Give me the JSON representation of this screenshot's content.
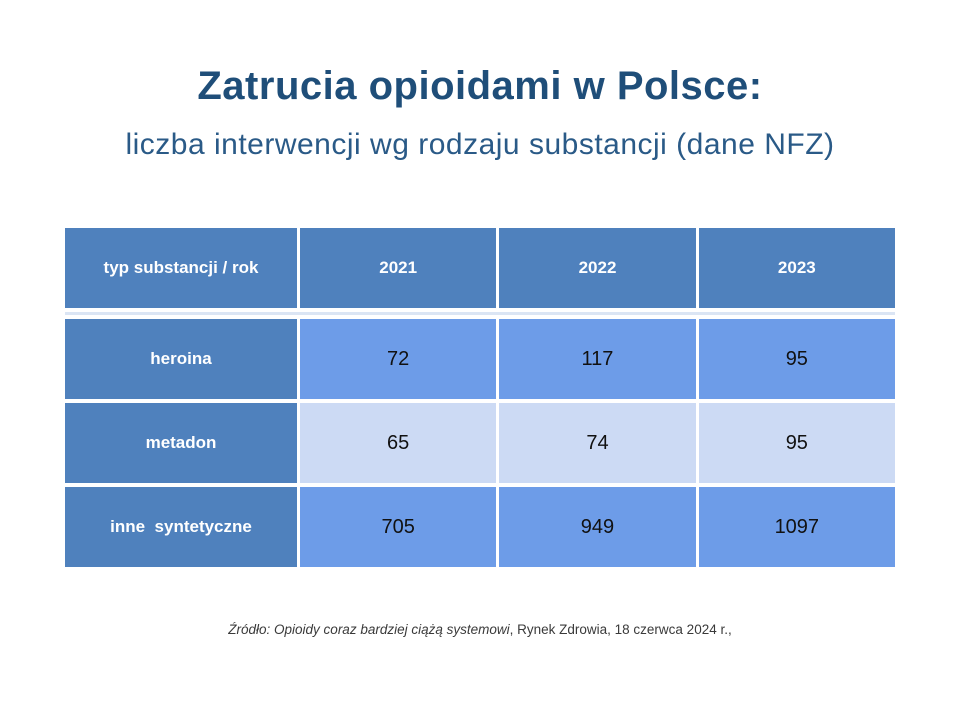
{
  "slide": {
    "title": "Zatrucia opioidami w Polsce:",
    "subtitle": "liczba interwencji wg rodzaju substancji (dane NFZ)",
    "source_italic": "Źródło: Opioidy coraz bardziej ciążą systemowi",
    "source_regular": ", Rynek Zdrowia, 18 czerwca 2024 r.,"
  },
  "colors": {
    "title_text": "#1f4e79",
    "subtitle_text": "#2a5a87",
    "header_blue": "#4f81bd",
    "data_cell_blue": "#6d9ce8",
    "light_row_blue": "#ccdaf4",
    "divider": "#dbe5f4"
  },
  "chart_data": {
    "type": "table",
    "title": "Zatrucia opioidami w Polsce: liczba interwencji wg rodzaju substancji (dane NFZ)",
    "columns": [
      "typ substancji / rok",
      "2021",
      "2022",
      "2023"
    ],
    "rows": [
      {
        "label": "heroina",
        "values": [
          "72",
          "117",
          "95"
        ]
      },
      {
        "label": "metadon",
        "values": [
          "65",
          "74",
          "95"
        ]
      },
      {
        "label": "inne  syntetyczne",
        "values": [
          "705",
          "949",
          "1097"
        ]
      }
    ]
  }
}
